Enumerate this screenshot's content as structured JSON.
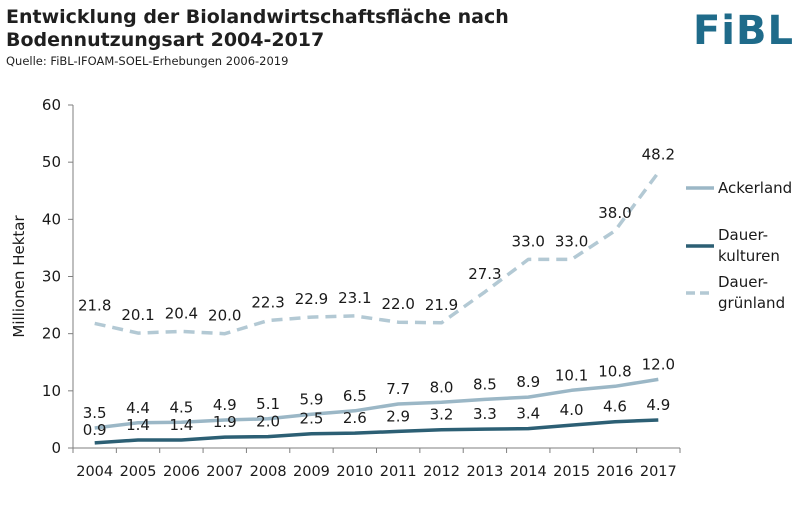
{
  "header": {
    "title_line1": "Entwicklung der Biolandwirtschaftsfläche nach",
    "title_line2": "Bodennutzungsart 2004-2017",
    "source": "Quelle: FiBL-IFOAM-SOEL-Erhebungen 2006-2019",
    "logo": "FiBL"
  },
  "colors": {
    "ackerland": "#9bb7c6",
    "dauerkulturen": "#2c5f74",
    "dauergruenland": "#b3c9d4",
    "axis": "#7f7f7f"
  },
  "chart_data": {
    "type": "line",
    "ylabel": "Millionen Hektar",
    "xlabel": "",
    "ylim": [
      0,
      60
    ],
    "yticks": [
      0,
      10,
      20,
      30,
      40,
      50,
      60
    ],
    "grid": false,
    "legend_position": "right",
    "x": [
      "2004",
      "2005",
      "2006",
      "2007",
      "2008",
      "2009",
      "2010",
      "2011",
      "2012",
      "2013",
      "2014",
      "2015",
      "2016",
      "2017"
    ],
    "series": [
      {
        "key": "ackerland",
        "name": "Ackerland",
        "style": "solid",
        "values": [
          3.5,
          4.4,
          4.5,
          4.9,
          5.1,
          5.9,
          6.5,
          7.7,
          8.0,
          8.5,
          8.9,
          10.1,
          10.8,
          12.0
        ],
        "labels": [
          "3.5",
          "4.4",
          "4.5",
          "4.9",
          "5.1",
          "5.9",
          "6.5",
          "7.7",
          "8.0",
          "8.5",
          "8.9",
          "10.1",
          "10.8",
          "12.0"
        ]
      },
      {
        "key": "dauerkulturen",
        "name": "Dauer-kulturen",
        "legend_lines": [
          "Dauer-",
          "kulturen"
        ],
        "style": "solid",
        "values": [
          0.9,
          1.4,
          1.4,
          1.9,
          2.0,
          2.5,
          2.6,
          2.9,
          3.2,
          3.3,
          3.4,
          4.0,
          4.6,
          4.9
        ],
        "labels": [
          "0.9",
          "1.4",
          "1.4",
          "1.9",
          "2.0",
          "2.5",
          "2.6",
          "2.9",
          "3.2",
          "3.3",
          "3.4",
          "4.0",
          "4.6",
          "4.9"
        ]
      },
      {
        "key": "dauergruenland",
        "name": "Dauer-grünland",
        "legend_lines": [
          "Dauer-",
          "grünland"
        ],
        "style": "dashed",
        "values": [
          21.8,
          20.1,
          20.4,
          20.0,
          22.3,
          22.9,
          23.1,
          22.0,
          21.9,
          27.3,
          33.0,
          33.0,
          38.0,
          48.2
        ],
        "labels": [
          "21.8",
          "20.1",
          "20.4",
          "20.0",
          "22.3",
          "22.9",
          "23.1",
          "22.0",
          "21.9",
          "27.3",
          "33.0",
          "33.0",
          "38.0",
          "48.2"
        ]
      }
    ]
  }
}
